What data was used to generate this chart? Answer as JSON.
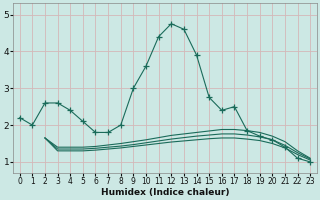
{
  "title": "",
  "xlabel": "Humidex (Indice chaleur)",
  "bg_color": "#cce8e4",
  "grid_color": "#d4b8b8",
  "line_color": "#1a6b5a",
  "xlim": [
    -0.5,
    23.5
  ],
  "ylim": [
    0.7,
    5.3
  ],
  "yticks": [
    1,
    2,
    3,
    4,
    5
  ],
  "xticks": [
    0,
    1,
    2,
    3,
    4,
    5,
    6,
    7,
    8,
    9,
    10,
    11,
    12,
    13,
    14,
    15,
    16,
    17,
    18,
    19,
    20,
    21,
    22,
    23
  ],
  "main_x": [
    0,
    1,
    2,
    3,
    4,
    5,
    6,
    7,
    8,
    9,
    10,
    11,
    12,
    13,
    14,
    15,
    16,
    17,
    18,
    19,
    20,
    21,
    22,
    23
  ],
  "main_y": [
    2.2,
    2.0,
    2.6,
    2.6,
    2.4,
    2.1,
    1.8,
    1.8,
    2.0,
    3.0,
    3.6,
    4.4,
    4.75,
    4.6,
    3.9,
    2.75,
    2.4,
    2.5,
    1.85,
    1.7,
    1.6,
    1.4,
    1.1,
    1.0
  ],
  "flat_lines": [
    {
      "x": [
        2,
        3,
        4,
        5,
        6,
        7,
        8,
        9,
        10,
        11,
        12,
        13,
        14,
        15,
        16,
        17,
        18,
        19,
        20,
        21,
        22,
        23
      ],
      "y": [
        1.65,
        1.3,
        1.3,
        1.3,
        1.32,
        1.35,
        1.38,
        1.42,
        1.46,
        1.5,
        1.54,
        1.57,
        1.6,
        1.63,
        1.65,
        1.65,
        1.62,
        1.58,
        1.5,
        1.38,
        1.2,
        1.05
      ]
    },
    {
      "x": [
        2,
        3,
        4,
        5,
        6,
        7,
        8,
        9,
        10,
        11,
        12,
        13,
        14,
        15,
        16,
        17,
        18,
        19,
        20,
        21,
        22,
        23
      ],
      "y": [
        1.65,
        1.35,
        1.35,
        1.35,
        1.37,
        1.4,
        1.43,
        1.47,
        1.52,
        1.57,
        1.62,
        1.66,
        1.7,
        1.73,
        1.76,
        1.76,
        1.73,
        1.68,
        1.6,
        1.45,
        1.25,
        1.08
      ]
    },
    {
      "x": [
        2,
        3,
        4,
        5,
        6,
        7,
        8,
        9,
        10,
        11,
        12,
        13,
        14,
        15,
        16,
        17,
        18,
        19,
        20,
        21,
        22,
        23
      ],
      "y": [
        1.65,
        1.4,
        1.4,
        1.4,
        1.42,
        1.46,
        1.5,
        1.55,
        1.6,
        1.66,
        1.72,
        1.76,
        1.8,
        1.84,
        1.88,
        1.88,
        1.85,
        1.8,
        1.7,
        1.55,
        1.3,
        1.1
      ]
    }
  ]
}
